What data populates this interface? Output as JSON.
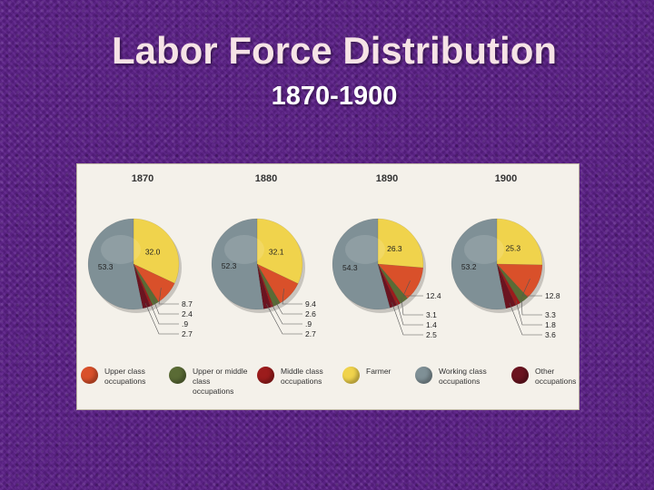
{
  "slide": {
    "title": "Labor Force Distribution",
    "subtitle": "1870-1900"
  },
  "colors": {
    "upper_class": "#d9502a",
    "upper_middle": "#5a6b35",
    "middle_class": "#9c1c1c",
    "farmer": "#f0d34c",
    "working_class": "#7f9096",
    "other": "#6b1420"
  },
  "legend": [
    {
      "label": "Upper class occupations",
      "color": "#d9502a"
    },
    {
      "label": "Upper or middle class occupations",
      "color": "#5a6b35"
    },
    {
      "label": "Middle class occupations",
      "color": "#9c1c1c"
    },
    {
      "label": "Farmer",
      "color": "#f0d34c"
    },
    {
      "label": "Working class occupations",
      "color": "#7f9096"
    },
    {
      "label": "Other occupations",
      "color": "#6b1420"
    }
  ],
  "chart_data": [
    {
      "type": "pie",
      "title": "1870",
      "categories": [
        "Working class occupations",
        "Farmer",
        "Upper class occupations",
        "Upper or middle class occupations",
        "Middle class occupations",
        "Other occupations"
      ],
      "values": [
        53.3,
        32.0,
        8.7,
        2.4,
        0.9,
        2.7
      ],
      "value_labels": [
        "53.3",
        "32.0",
        "8.7",
        "2.4",
        ".9",
        "2.7"
      ]
    },
    {
      "type": "pie",
      "title": "1880",
      "categories": [
        "Working class occupations",
        "Farmer",
        "Upper class occupations",
        "Upper or middle class occupations",
        "Middle class occupations",
        "Other occupations"
      ],
      "values": [
        52.3,
        32.1,
        9.4,
        2.6,
        0.9,
        2.7
      ],
      "value_labels": [
        "52.3",
        "32.1",
        "9.4",
        "2.6",
        ".9",
        "2.7"
      ]
    },
    {
      "type": "pie",
      "title": "1890",
      "categories": [
        "Working class occupations",
        "Farmer",
        "Upper class occupations",
        "Upper or middle class occupations",
        "Middle class occupations",
        "Other occupations"
      ],
      "values": [
        54.3,
        26.3,
        12.4,
        3.1,
        1.4,
        2.5
      ],
      "value_labels": [
        "54.3",
        "26.3",
        "12.4",
        "3.1",
        "1.4",
        "2.5"
      ]
    },
    {
      "type": "pie",
      "title": "1900",
      "categories": [
        "Working class occupations",
        "Farmer",
        "Upper class occupations",
        "Upper or middle class occupations",
        "Middle class occupations",
        "Other occupations"
      ],
      "values": [
        53.2,
        25.3,
        12.8,
        3.3,
        1.8,
        3.6
      ],
      "value_labels": [
        "53.2",
        "25.3",
        "12.8",
        "3.3",
        "1.8",
        "3.6"
      ]
    }
  ]
}
